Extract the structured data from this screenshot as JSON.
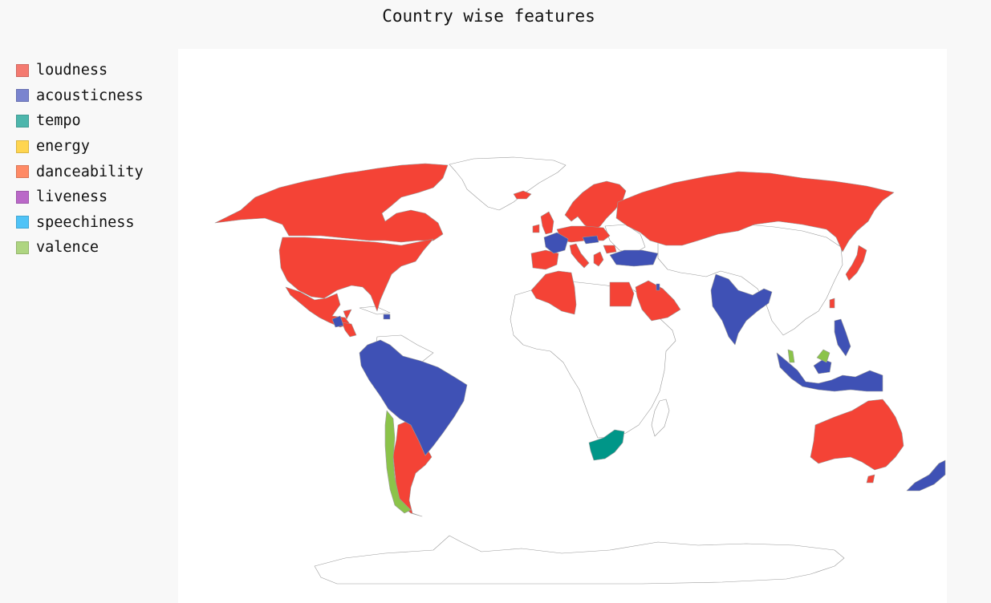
{
  "title": "Country wise features",
  "legend": [
    {
      "label": "loudness",
      "color": "#f47a70"
    },
    {
      "label": "acousticness",
      "color": "#7a84cf"
    },
    {
      "label": "tempo",
      "color": "#4db6ac"
    },
    {
      "label": "energy",
      "color": "#ffd54f"
    },
    {
      "label": "danceability",
      "color": "#ff8a65"
    },
    {
      "label": "liveness",
      "color": "#ba68c8"
    },
    {
      "label": "speechiness",
      "color": "#4fc3f7"
    },
    {
      "label": "valence",
      "color": "#aed581"
    }
  ],
  "feature_colors": {
    "loudness": "#f44336",
    "acousticness": "#3f51b5",
    "tempo": "#009688",
    "valence": "#8bc34a",
    "no_data": "#ffffff"
  },
  "regions": [
    {
      "name": "Canada",
      "feature": "loudness"
    },
    {
      "name": "United States",
      "feature": "loudness"
    },
    {
      "name": "Mexico",
      "feature": "loudness"
    },
    {
      "name": "Guatemala",
      "feature": "acousticness"
    },
    {
      "name": "Honduras",
      "feature": "loudness"
    },
    {
      "name": "Costa Rica",
      "feature": "loudness"
    },
    {
      "name": "Dominican Republic",
      "feature": "acousticness"
    },
    {
      "name": "Colombia",
      "feature": "acousticness"
    },
    {
      "name": "Ecuador",
      "feature": "acousticness"
    },
    {
      "name": "Peru",
      "feature": "acousticness"
    },
    {
      "name": "Bolivia",
      "feature": "acousticness"
    },
    {
      "name": "Brazil",
      "feature": "acousticness"
    },
    {
      "name": "Paraguay",
      "feature": "acousticness"
    },
    {
      "name": "Uruguay",
      "feature": "loudness"
    },
    {
      "name": "Argentina",
      "feature": "loudness"
    },
    {
      "name": "Chile",
      "feature": "valence"
    },
    {
      "name": "Iceland",
      "feature": "loudness"
    },
    {
      "name": "Ireland",
      "feature": "loudness"
    },
    {
      "name": "United Kingdom",
      "feature": "loudness"
    },
    {
      "name": "Norway",
      "feature": "loudness"
    },
    {
      "name": "Sweden",
      "feature": "loudness"
    },
    {
      "name": "Finland",
      "feature": "loudness"
    },
    {
      "name": "Denmark",
      "feature": "loudness"
    },
    {
      "name": "Netherlands",
      "feature": "loudness"
    },
    {
      "name": "Belgium",
      "feature": "loudness"
    },
    {
      "name": "Germany",
      "feature": "loudness"
    },
    {
      "name": "Poland",
      "feature": "loudness"
    },
    {
      "name": "Czech Republic",
      "feature": "loudness"
    },
    {
      "name": "Slovakia",
      "feature": "acousticness"
    },
    {
      "name": "Austria",
      "feature": "loudness"
    },
    {
      "name": "Hungary",
      "feature": "acousticness"
    },
    {
      "name": "Switzerland",
      "feature": "loudness"
    },
    {
      "name": "France",
      "feature": "acousticness"
    },
    {
      "name": "Spain",
      "feature": "loudness"
    },
    {
      "name": "Portugal",
      "feature": "loudness"
    },
    {
      "name": "Italy",
      "feature": "loudness"
    },
    {
      "name": "Greece",
      "feature": "loudness"
    },
    {
      "name": "Bulgaria",
      "feature": "loudness"
    },
    {
      "name": "Romania",
      "feature": "loudness"
    },
    {
      "name": "Estonia",
      "feature": "loudness"
    },
    {
      "name": "Latvia",
      "feature": "loudness"
    },
    {
      "name": "Lithuania",
      "feature": "loudness"
    },
    {
      "name": "Russia",
      "feature": "loudness"
    },
    {
      "name": "Turkey",
      "feature": "acousticness"
    },
    {
      "name": "Israel",
      "feature": "acousticness"
    },
    {
      "name": "Morocco",
      "feature": "loudness"
    },
    {
      "name": "Algeria",
      "feature": "loudness"
    },
    {
      "name": "Egypt",
      "feature": "loudness"
    },
    {
      "name": "Saudi Arabia",
      "feature": "loudness"
    },
    {
      "name": "United Arab Emirates",
      "feature": "loudness"
    },
    {
      "name": "South Africa",
      "feature": "tempo"
    },
    {
      "name": "India",
      "feature": "acousticness"
    },
    {
      "name": "Taiwan",
      "feature": "loudness"
    },
    {
      "name": "Japan",
      "feature": "loudness"
    },
    {
      "name": "Vietnam",
      "feature": "valence"
    },
    {
      "name": "Philippines",
      "feature": "acousticness"
    },
    {
      "name": "Malaysia",
      "feature": "acousticness"
    },
    {
      "name": "Singapore",
      "feature": "valence"
    },
    {
      "name": "Indonesia",
      "feature": "acousticness"
    },
    {
      "name": "Australia",
      "feature": "loudness"
    },
    {
      "name": "New Zealand",
      "feature": "acousticness"
    }
  ]
}
